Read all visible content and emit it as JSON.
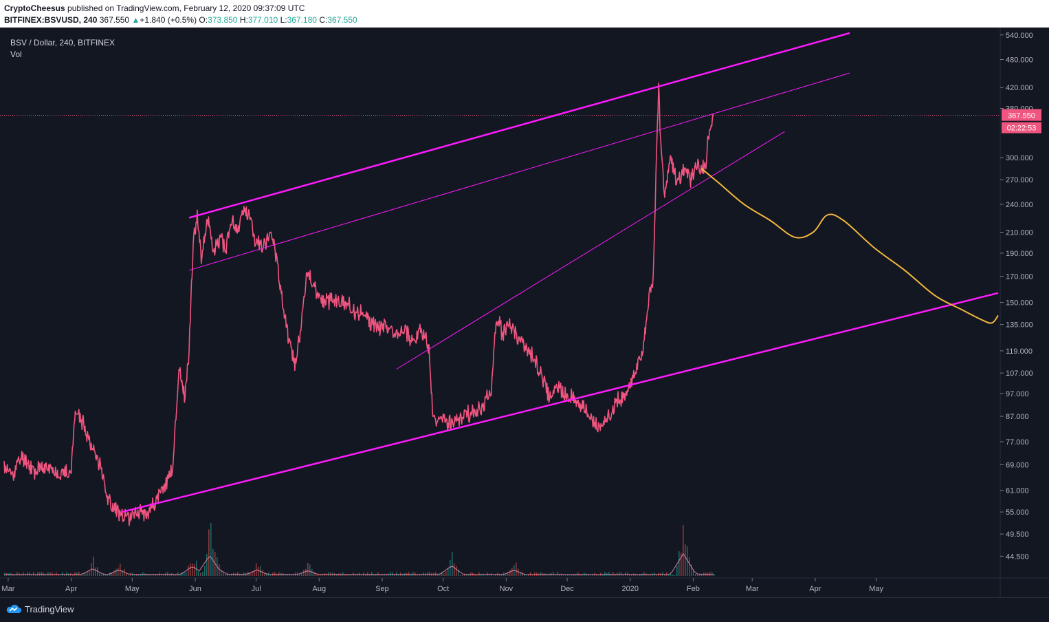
{
  "header": {
    "author": "CryptoCheesus",
    "published": "published on TradingView.com, February 12, 2020 09:37:09 UTC",
    "symbol": "BITFINEX:BSVUSD, 240",
    "last": "367.550",
    "change": "+1.840 (+0.5%)",
    "o_label": "O:",
    "o": "373.850",
    "h_label": "H:",
    "h": "377.010",
    "l_label": "L:",
    "l": "367.180",
    "c_label": "C:",
    "c": "367.550"
  },
  "legend": {
    "title": "BSV / Dollar, 240, BITFINEX",
    "indicator": "Vol"
  },
  "price_tag": "367.550",
  "countdown_tag": "02:22:53",
  "footer": {
    "brand": "TradingView"
  },
  "colors": {
    "background": "#131722",
    "price_line": "#f0557f",
    "channel": "#ff1aff",
    "projection": "#f5b83d",
    "price_tag": "#f0557f"
  },
  "icons": {
    "brand": "tradingview-cloud-icon"
  },
  "chart_data": {
    "type": "line",
    "scale": "log",
    "ylim": [
      42,
      545
    ],
    "xlim": [
      "2019-02-27",
      "2020-06-30"
    ],
    "y_ticks": [
      540,
      480,
      420,
      380,
      300,
      270,
      240,
      210,
      190,
      170,
      150,
      135,
      119,
      107,
      97,
      87,
      77,
      69,
      61,
      55,
      49.5,
      44.5
    ],
    "y_tick_labels": [
      "540.000",
      "480.000",
      "420.000",
      "380.000",
      "300.000",
      "270.000",
      "240.000",
      "210.000",
      "190.000",
      "170.000",
      "150.000",
      "135.000",
      "119.000",
      "107.000",
      "97.000",
      "87.000",
      "77.000",
      "69.000",
      "61.000",
      "55.000",
      "49.500",
      "44.500"
    ],
    "x_ticks": [
      "2019-03-01",
      "2019-04-01",
      "2019-05-01",
      "2019-06-01",
      "2019-07-01",
      "2019-08-01",
      "2019-09-01",
      "2019-10-01",
      "2019-11-01",
      "2019-12-01",
      "2020-01-01",
      "2020-02-01",
      "2020-03-01",
      "2020-04-01",
      "2020-05-01"
    ],
    "x_tick_labels": [
      "Mar",
      "Apr",
      "May",
      "Jun",
      "Jul",
      "Aug",
      "Sep",
      "Oct",
      "Nov",
      "Dec",
      "2020",
      "Feb",
      "Mar",
      "Apr",
      "May"
    ],
    "series": [
      {
        "values": [
          [
            "2019-02-27",
            68
          ],
          [
            "2019-03-03",
            66
          ],
          [
            "2019-03-08",
            72
          ],
          [
            "2019-03-14",
            67
          ],
          [
            "2019-03-20",
            68
          ],
          [
            "2019-03-28",
            66
          ],
          [
            "2019-04-01",
            67
          ],
          [
            "2019-04-03",
            90
          ],
          [
            "2019-04-06",
            85
          ],
          [
            "2019-04-09",
            80
          ],
          [
            "2019-04-13",
            72
          ],
          [
            "2019-04-16",
            68
          ],
          [
            "2019-04-19",
            58
          ],
          [
            "2019-04-23",
            56
          ],
          [
            "2019-04-27",
            53
          ],
          [
            "2019-05-02",
            55
          ],
          [
            "2019-05-08",
            55
          ],
          [
            "2019-05-12",
            57
          ],
          [
            "2019-05-15",
            60
          ],
          [
            "2019-05-18",
            64
          ],
          [
            "2019-05-21",
            68
          ],
          [
            "2019-05-24",
            110
          ],
          [
            "2019-05-27",
            95
          ],
          [
            "2019-05-29",
            120
          ],
          [
            "2019-05-31",
            200
          ],
          [
            "2019-06-02",
            230
          ],
          [
            "2019-06-04",
            185
          ],
          [
            "2019-06-07",
            225
          ],
          [
            "2019-06-10",
            190
          ],
          [
            "2019-06-13",
            205
          ],
          [
            "2019-06-16",
            195
          ],
          [
            "2019-06-19",
            220
          ],
          [
            "2019-06-22",
            210
          ],
          [
            "2019-06-25",
            235
          ],
          [
            "2019-06-28",
            228
          ],
          [
            "2019-07-01",
            200
          ],
          [
            "2019-07-04",
            195
          ],
          [
            "2019-07-08",
            210
          ],
          [
            "2019-07-10",
            200
          ],
          [
            "2019-07-13",
            160
          ],
          [
            "2019-07-17",
            125
          ],
          [
            "2019-07-20",
            112
          ],
          [
            "2019-07-23",
            135
          ],
          [
            "2019-07-26",
            175
          ],
          [
            "2019-07-30",
            160
          ],
          [
            "2019-08-03",
            150
          ],
          [
            "2019-08-08",
            152
          ],
          [
            "2019-08-13",
            150
          ],
          [
            "2019-08-18",
            145
          ],
          [
            "2019-08-23",
            140
          ],
          [
            "2019-08-28",
            135
          ],
          [
            "2019-09-02",
            133
          ],
          [
            "2019-09-07",
            130
          ],
          [
            "2019-09-12",
            133
          ],
          [
            "2019-09-15",
            125
          ],
          [
            "2019-09-19",
            130
          ],
          [
            "2019-09-22",
            128
          ],
          [
            "2019-09-24",
            120
          ],
          [
            "2019-09-26",
            85
          ],
          [
            "2019-10-01",
            85
          ],
          [
            "2019-10-07",
            84
          ],
          [
            "2019-10-12",
            88
          ],
          [
            "2019-10-16",
            88
          ],
          [
            "2019-10-21",
            92
          ],
          [
            "2019-10-25",
            102
          ],
          [
            "2019-10-27",
            140
          ],
          [
            "2019-10-30",
            130
          ],
          [
            "2019-11-03",
            135
          ],
          [
            "2019-11-08",
            125
          ],
          [
            "2019-11-13",
            118
          ],
          [
            "2019-11-17",
            110
          ],
          [
            "2019-11-22",
            96
          ],
          [
            "2019-11-26",
            100
          ],
          [
            "2019-11-30",
            96
          ],
          [
            "2019-12-04",
            95
          ],
          [
            "2019-12-10",
            90
          ],
          [
            "2019-12-14",
            86
          ],
          [
            "2019-12-17",
            81
          ],
          [
            "2019-12-21",
            86
          ],
          [
            "2019-12-26",
            94
          ],
          [
            "2019-12-30",
            96
          ],
          [
            "2020-01-03",
            108
          ],
          [
            "2020-01-07",
            116
          ],
          [
            "2020-01-10",
            150
          ],
          [
            "2020-01-12",
            165
          ],
          [
            "2020-01-13",
            210
          ],
          [
            "2020-01-14",
            310
          ],
          [
            "2020-01-15",
            420
          ],
          [
            "2020-01-16",
            320
          ],
          [
            "2020-01-18",
            250
          ],
          [
            "2020-01-21",
            300
          ],
          [
            "2020-01-24",
            265
          ],
          [
            "2020-01-28",
            285
          ],
          [
            "2020-01-31",
            270
          ],
          [
            "2020-02-03",
            290
          ],
          [
            "2020-02-05",
            280
          ],
          [
            "2020-02-07",
            290
          ],
          [
            "2020-02-09",
            340
          ],
          [
            "2020-02-11",
            367.55
          ]
        ]
      },
      {
        "type": "projection",
        "values": [
          [
            "2020-02-05",
            285
          ],
          [
            "2020-02-14",
            265
          ],
          [
            "2020-02-26",
            240
          ],
          [
            "2020-03-10",
            222
          ],
          [
            "2020-03-22",
            205
          ],
          [
            "2020-03-31",
            210
          ],
          [
            "2020-04-07",
            228
          ],
          [
            "2020-04-15",
            222
          ],
          [
            "2020-04-30",
            195
          ],
          [
            "2020-05-15",
            175
          ],
          [
            "2020-05-30",
            155
          ],
          [
            "2020-06-12",
            145
          ],
          [
            "2020-06-22",
            138
          ],
          [
            "2020-06-27",
            136
          ],
          [
            "2020-06-30",
            141
          ]
        ]
      }
    ],
    "trendlines": [
      {
        "role": "upper",
        "from": [
          "2019-05-29",
          225
        ],
        "to": [
          "2020-04-18",
          545
        ]
      },
      {
        "role": "mid",
        "from": [
          "2019-05-29",
          175
        ],
        "to": [
          "2020-04-18",
          450
        ]
      },
      {
        "role": "lower",
        "from": [
          "2019-04-26",
          55
        ],
        "to": [
          "2020-06-30",
          157
        ]
      },
      {
        "role": "rising",
        "from": [
          "2019-09-08",
          109
        ],
        "to": [
          "2020-03-17",
          340
        ]
      }
    ],
    "current_price": 367.55
  }
}
